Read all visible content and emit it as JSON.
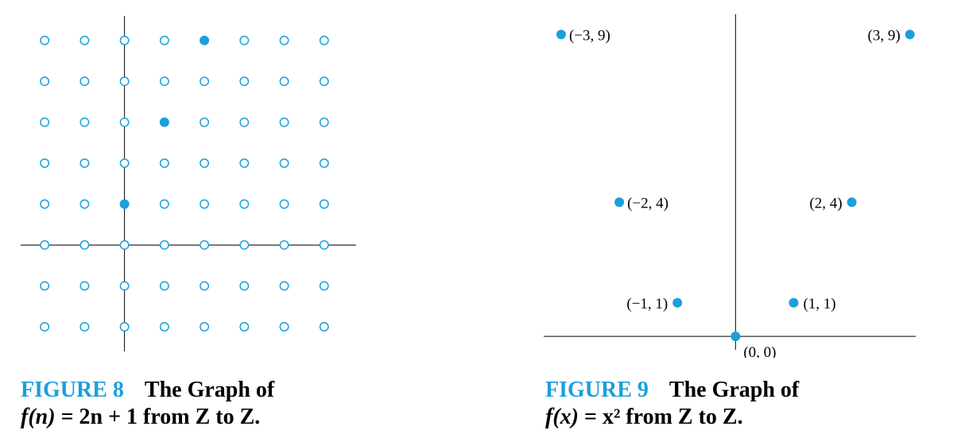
{
  "colors": {
    "accent": "#1aa0dc",
    "axis": "#000000"
  },
  "figures": [
    {
      "caption_number": "FIGURE 8",
      "caption_title": "The Graph of",
      "caption_formula_f": "f",
      "caption_formula_var": "(n)",
      "caption_formula_rest": " = 2n + 1 from Z to Z."
    },
    {
      "caption_number": "FIGURE 9",
      "caption_title": "The Graph of",
      "caption_formula_f": "f",
      "caption_formula_var": "(x)",
      "caption_formula_rest": " = x² from Z to Z."
    }
  ],
  "chart_data": [
    {
      "type": "scatter",
      "title": "",
      "grid_x": [
        -2,
        -1,
        0,
        1,
        2,
        3,
        4,
        5
      ],
      "grid_y": [
        -2,
        -1,
        0,
        1,
        2,
        3,
        4,
        5
      ],
      "grid_points_style": "open-circle",
      "points": [
        {
          "x": 0,
          "y": 1
        },
        {
          "x": 1,
          "y": 3
        },
        {
          "x": 2,
          "y": 5
        }
      ],
      "xlim": [
        -2.6,
        5.8
      ],
      "ylim": [
        -2.6,
        5.6
      ]
    },
    {
      "type": "scatter",
      "title": "",
      "points": [
        {
          "x": -3,
          "y": 9,
          "label": "(−3, 9)"
        },
        {
          "x": -2,
          "y": 4,
          "label": "(−2, 4)"
        },
        {
          "x": -1,
          "y": 1,
          "label": "(−1, 1)"
        },
        {
          "x": 0,
          "y": 0,
          "label": "(0, 0)"
        },
        {
          "x": 1,
          "y": 1,
          "label": "(1, 1)"
        },
        {
          "x": 2,
          "y": 4,
          "label": "(2, 4)"
        },
        {
          "x": 3,
          "y": 9,
          "label": "(3, 9)"
        }
      ],
      "xlim": [
        -3.3,
        3.1
      ],
      "ylim": [
        -0.4,
        9.6
      ]
    }
  ]
}
